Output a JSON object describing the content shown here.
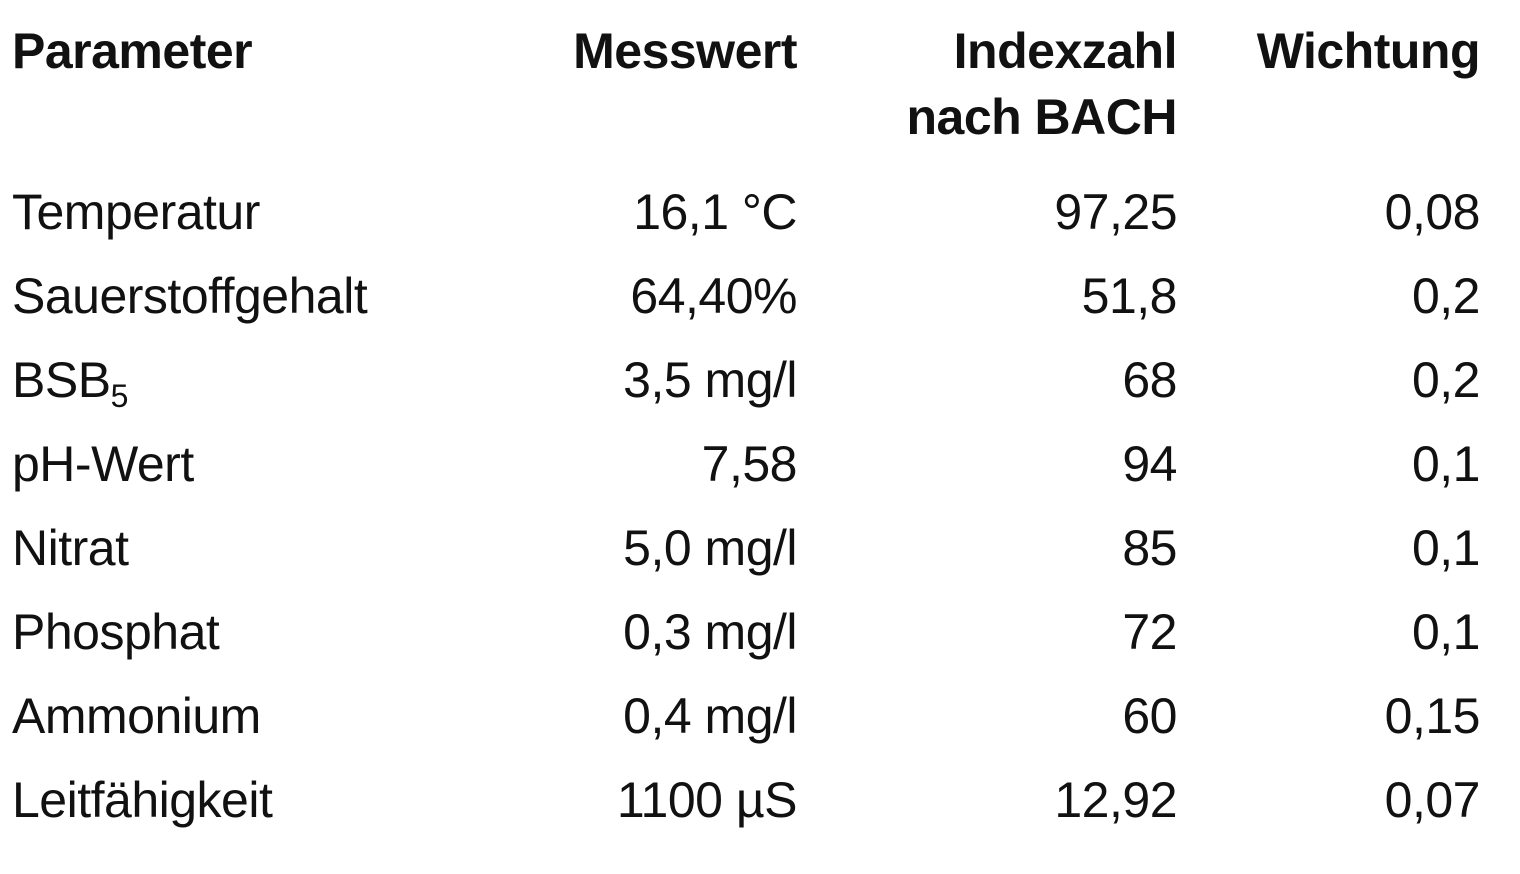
{
  "table": {
    "headers": {
      "parameter": "Parameter",
      "messwert": "Messwert",
      "indexzahl_line1": "Indexzahl",
      "indexzahl_line2": "nach BACH",
      "wichtung": "Wichtung"
    },
    "rows": [
      {
        "parameter": "Temperatur",
        "parameter_sub": "",
        "messwert": "16,1 °C",
        "indexzahl": "97,25",
        "wichtung": "0,08"
      },
      {
        "parameter": "Sauerstoffgehalt",
        "parameter_sub": "",
        "messwert": "64,40%",
        "indexzahl": "51,8",
        "wichtung": "0,2"
      },
      {
        "parameter": "BSB",
        "parameter_sub": "5",
        "messwert": "3,5 mg/l",
        "indexzahl": "68",
        "wichtung": "0,2"
      },
      {
        "parameter": "pH-Wert",
        "parameter_sub": "",
        "messwert": "7,58",
        "indexzahl": "94",
        "wichtung": "0,1"
      },
      {
        "parameter": "Nitrat",
        "parameter_sub": "",
        "messwert": "5,0 mg/l",
        "indexzahl": "85",
        "wichtung": "0,1"
      },
      {
        "parameter": "Phosphat",
        "parameter_sub": "",
        "messwert": "0,3 mg/l",
        "indexzahl": "72",
        "wichtung": "0,1"
      },
      {
        "parameter": "Ammonium",
        "parameter_sub": "",
        "messwert": "0,4 mg/l",
        "indexzahl": "60",
        "wichtung": "0,15"
      },
      {
        "parameter": "Leitfähigkeit",
        "parameter_sub": "",
        "messwert": "1100 µS",
        "indexzahl": "12,92",
        "wichtung": "0,07"
      }
    ]
  }
}
